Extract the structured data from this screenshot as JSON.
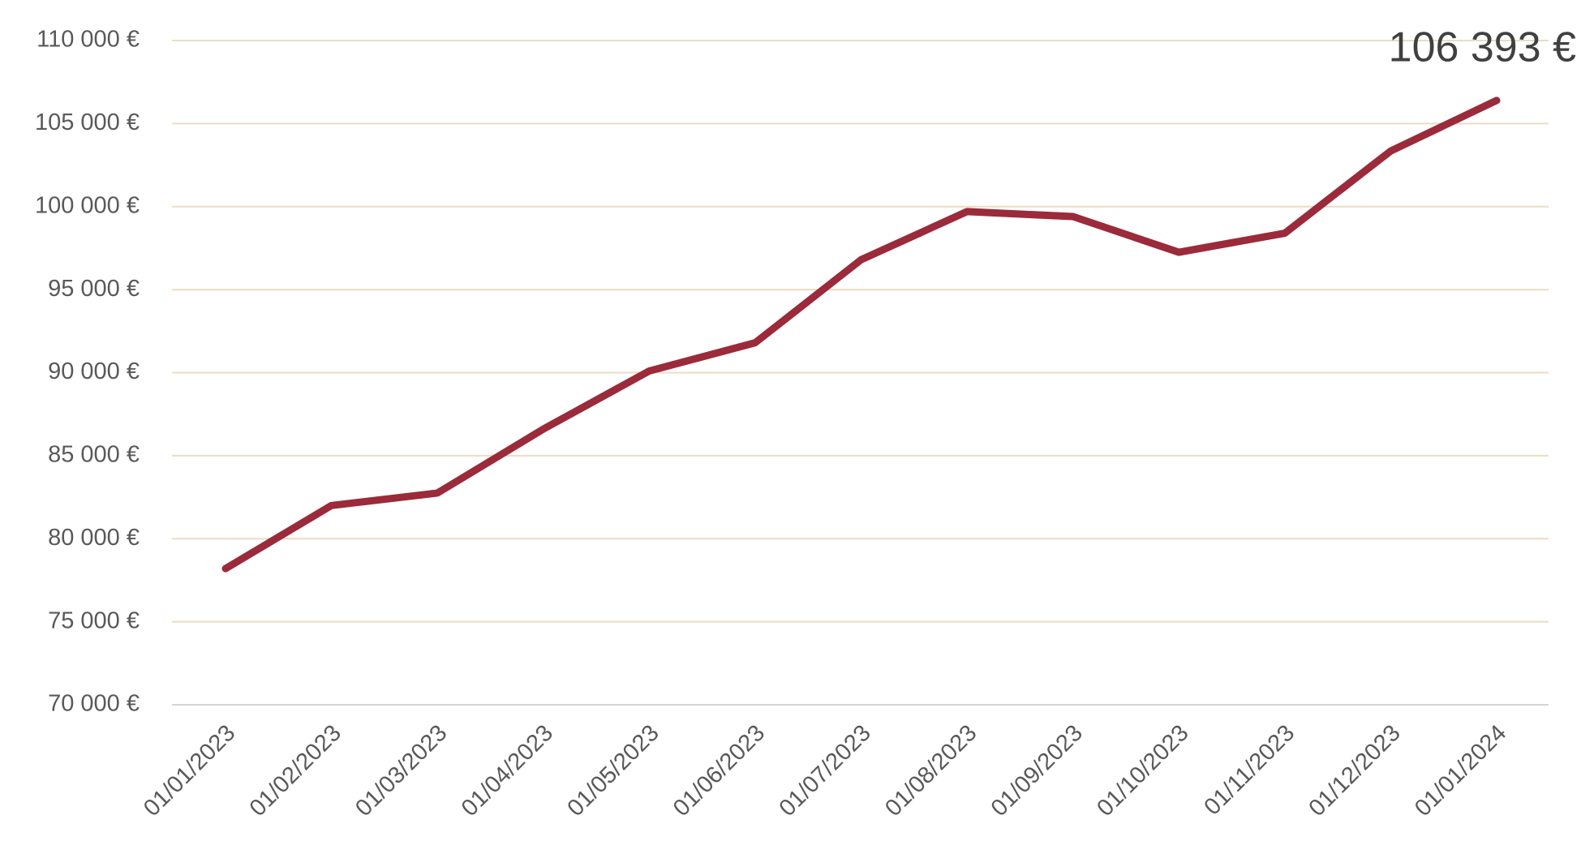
{
  "chart_data": {
    "type": "line",
    "categories": [
      "01/01/2023",
      "01/02/2023",
      "01/03/2023",
      "01/04/2023",
      "01/05/2023",
      "01/06/2023",
      "01/07/2023",
      "01/08/2023",
      "01/09/2023",
      "01/10/2023",
      "01/11/2023",
      "01/12/2023",
      "01/01/2024"
    ],
    "series": [
      {
        "color": "#9b2a3a",
        "values": [
          78200,
          82000,
          82750,
          86600,
          90100,
          91800,
          96800,
          99700,
          99400,
          97250,
          98400,
          103350,
          106393
        ],
        "value_labels": [
          null,
          null,
          null,
          null,
          null,
          null,
          null,
          null,
          null,
          null,
          null,
          null,
          "106 393 €"
        ]
      }
    ],
    "ylim": [
      70000,
      110000
    ],
    "yticks": [
      {
        "value": 70000,
        "label": "70 000 €"
      },
      {
        "value": 75000,
        "label": "75 000 €"
      },
      {
        "value": 80000,
        "label": "80 000 €"
      },
      {
        "value": 85000,
        "label": "85 000 €"
      },
      {
        "value": 90000,
        "label": "90 000 €"
      },
      {
        "value": 95000,
        "label": "95 000 €"
      },
      {
        "value": 100000,
        "label": "100 000 €"
      },
      {
        "value": 105000,
        "label": "105 000 €"
      },
      {
        "value": 110000,
        "label": "110 000 €"
      }
    ],
    "grid": true
  }
}
